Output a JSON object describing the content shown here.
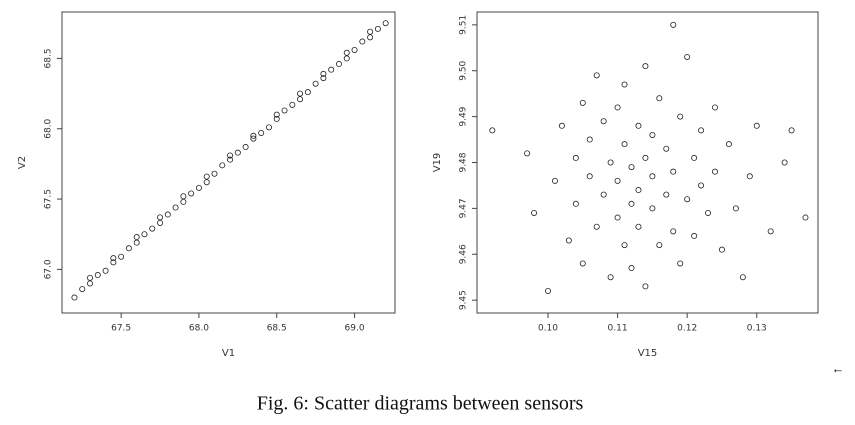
{
  "chart_data": [
    {
      "type": "scatter",
      "x_label": "V1",
      "y_label": "V2",
      "color": "#222222",
      "xlim": [
        67.12,
        69.26
      ],
      "xticks": [
        {
          "value": 67.5,
          "label": "67.5"
        },
        {
          "value": 68.0,
          "label": "68.0"
        },
        {
          "value": 68.5,
          "label": "68.5"
        },
        {
          "value": 69.0,
          "label": "69.0"
        }
      ],
      "ylim": [
        66.69,
        68.83
      ],
      "yticks": [
        {
          "value": 67.0,
          "label": "67.0"
        },
        {
          "value": 67.5,
          "label": "67.5"
        },
        {
          "value": 68.0,
          "label": "68.0"
        },
        {
          "value": 68.5,
          "label": "68.5"
        }
      ],
      "x": [
        67.2,
        67.25,
        67.3,
        67.35,
        67.4,
        67.45,
        67.5,
        67.55,
        67.6,
        67.65,
        67.7,
        67.75,
        67.8,
        67.85,
        67.9,
        67.95,
        68.0,
        68.05,
        68.1,
        68.15,
        68.2,
        68.25,
        68.3,
        68.35,
        68.4,
        68.45,
        68.5,
        68.55,
        68.6,
        68.65,
        68.7,
        68.75,
        68.8,
        68.85,
        68.9,
        68.95,
        69.0,
        69.05,
        69.1,
        69.15,
        69.2,
        67.3,
        67.45,
        67.6,
        67.75,
        67.9,
        68.05,
        68.2,
        68.35,
        68.5,
        68.65,
        68.8,
        68.95,
        69.1
      ],
      "values": [
        66.8,
        66.86,
        66.9,
        66.96,
        66.99,
        67.05,
        67.09,
        67.15,
        67.19,
        67.25,
        67.29,
        67.33,
        67.39,
        67.44,
        67.48,
        67.54,
        67.58,
        67.62,
        67.68,
        67.74,
        67.78,
        67.83,
        67.87,
        67.93,
        67.97,
        68.01,
        68.07,
        68.13,
        68.17,
        68.21,
        68.26,
        68.32,
        68.36,
        68.42,
        68.46,
        68.5,
        68.56,
        68.62,
        68.65,
        68.71,
        68.75,
        66.94,
        67.08,
        67.23,
        67.37,
        67.52,
        67.66,
        67.81,
        67.95,
        68.1,
        68.25,
        68.39,
        68.54,
        68.69
      ]
    },
    {
      "type": "scatter",
      "x_label": "V15",
      "y_label": "V19",
      "color": "#222222",
      "xlim": [
        0.0898,
        0.1388
      ],
      "xticks": [
        {
          "value": 0.1,
          "label": "0.10"
        },
        {
          "value": 0.11,
          "label": "0.11"
        },
        {
          "value": 0.12,
          "label": "0.12"
        },
        {
          "value": 0.13,
          "label": "0.13"
        }
      ],
      "ylim": [
        9.4472,
        9.5128
      ],
      "yticks": [
        {
          "value": 9.45,
          "label": "9.45"
        },
        {
          "value": 9.46,
          "label": "9.46"
        },
        {
          "value": 9.47,
          "label": "9.47"
        },
        {
          "value": 9.48,
          "label": "9.48"
        },
        {
          "value": 9.49,
          "label": "9.49"
        },
        {
          "value": 9.5,
          "label": "9.50"
        },
        {
          "value": 9.51,
          "label": "9.51"
        }
      ],
      "x": [
        0.092,
        0.097,
        0.098,
        0.1,
        0.101,
        0.102,
        0.103,
        0.104,
        0.104,
        0.105,
        0.105,
        0.106,
        0.106,
        0.107,
        0.107,
        0.108,
        0.108,
        0.109,
        0.109,
        0.11,
        0.11,
        0.11,
        0.111,
        0.111,
        0.111,
        0.112,
        0.112,
        0.112,
        0.113,
        0.113,
        0.113,
        0.114,
        0.114,
        0.114,
        0.115,
        0.115,
        0.115,
        0.116,
        0.116,
        0.117,
        0.117,
        0.118,
        0.118,
        0.118,
        0.119,
        0.119,
        0.12,
        0.12,
        0.121,
        0.121,
        0.122,
        0.122,
        0.123,
        0.124,
        0.124,
        0.125,
        0.126,
        0.127,
        0.128,
        0.129,
        0.13,
        0.132,
        0.134,
        0.135,
        0.137
      ],
      "values": [
        9.487,
        9.482,
        9.469,
        9.452,
        9.476,
        9.488,
        9.463,
        9.481,
        9.471,
        9.493,
        9.458,
        9.477,
        9.485,
        9.466,
        9.499,
        9.473,
        9.489,
        9.455,
        9.48,
        9.468,
        9.492,
        9.476,
        9.462,
        9.484,
        9.497,
        9.471,
        9.479,
        9.457,
        9.488,
        9.474,
        9.466,
        9.501,
        9.481,
        9.453,
        9.47,
        9.486,
        9.477,
        9.462,
        9.494,
        9.473,
        9.483,
        9.51,
        9.465,
        9.478,
        9.49,
        9.458,
        9.472,
        9.503,
        9.481,
        9.464,
        9.487,
        9.475,
        9.469,
        9.492,
        9.478,
        9.461,
        9.484,
        9.47,
        9.455,
        9.477,
        9.488,
        9.465,
        9.48,
        9.487,
        9.468
      ]
    }
  ],
  "caption": "Fig. 6: Scatter diagrams between sensors",
  "paragraph_mark": "←"
}
